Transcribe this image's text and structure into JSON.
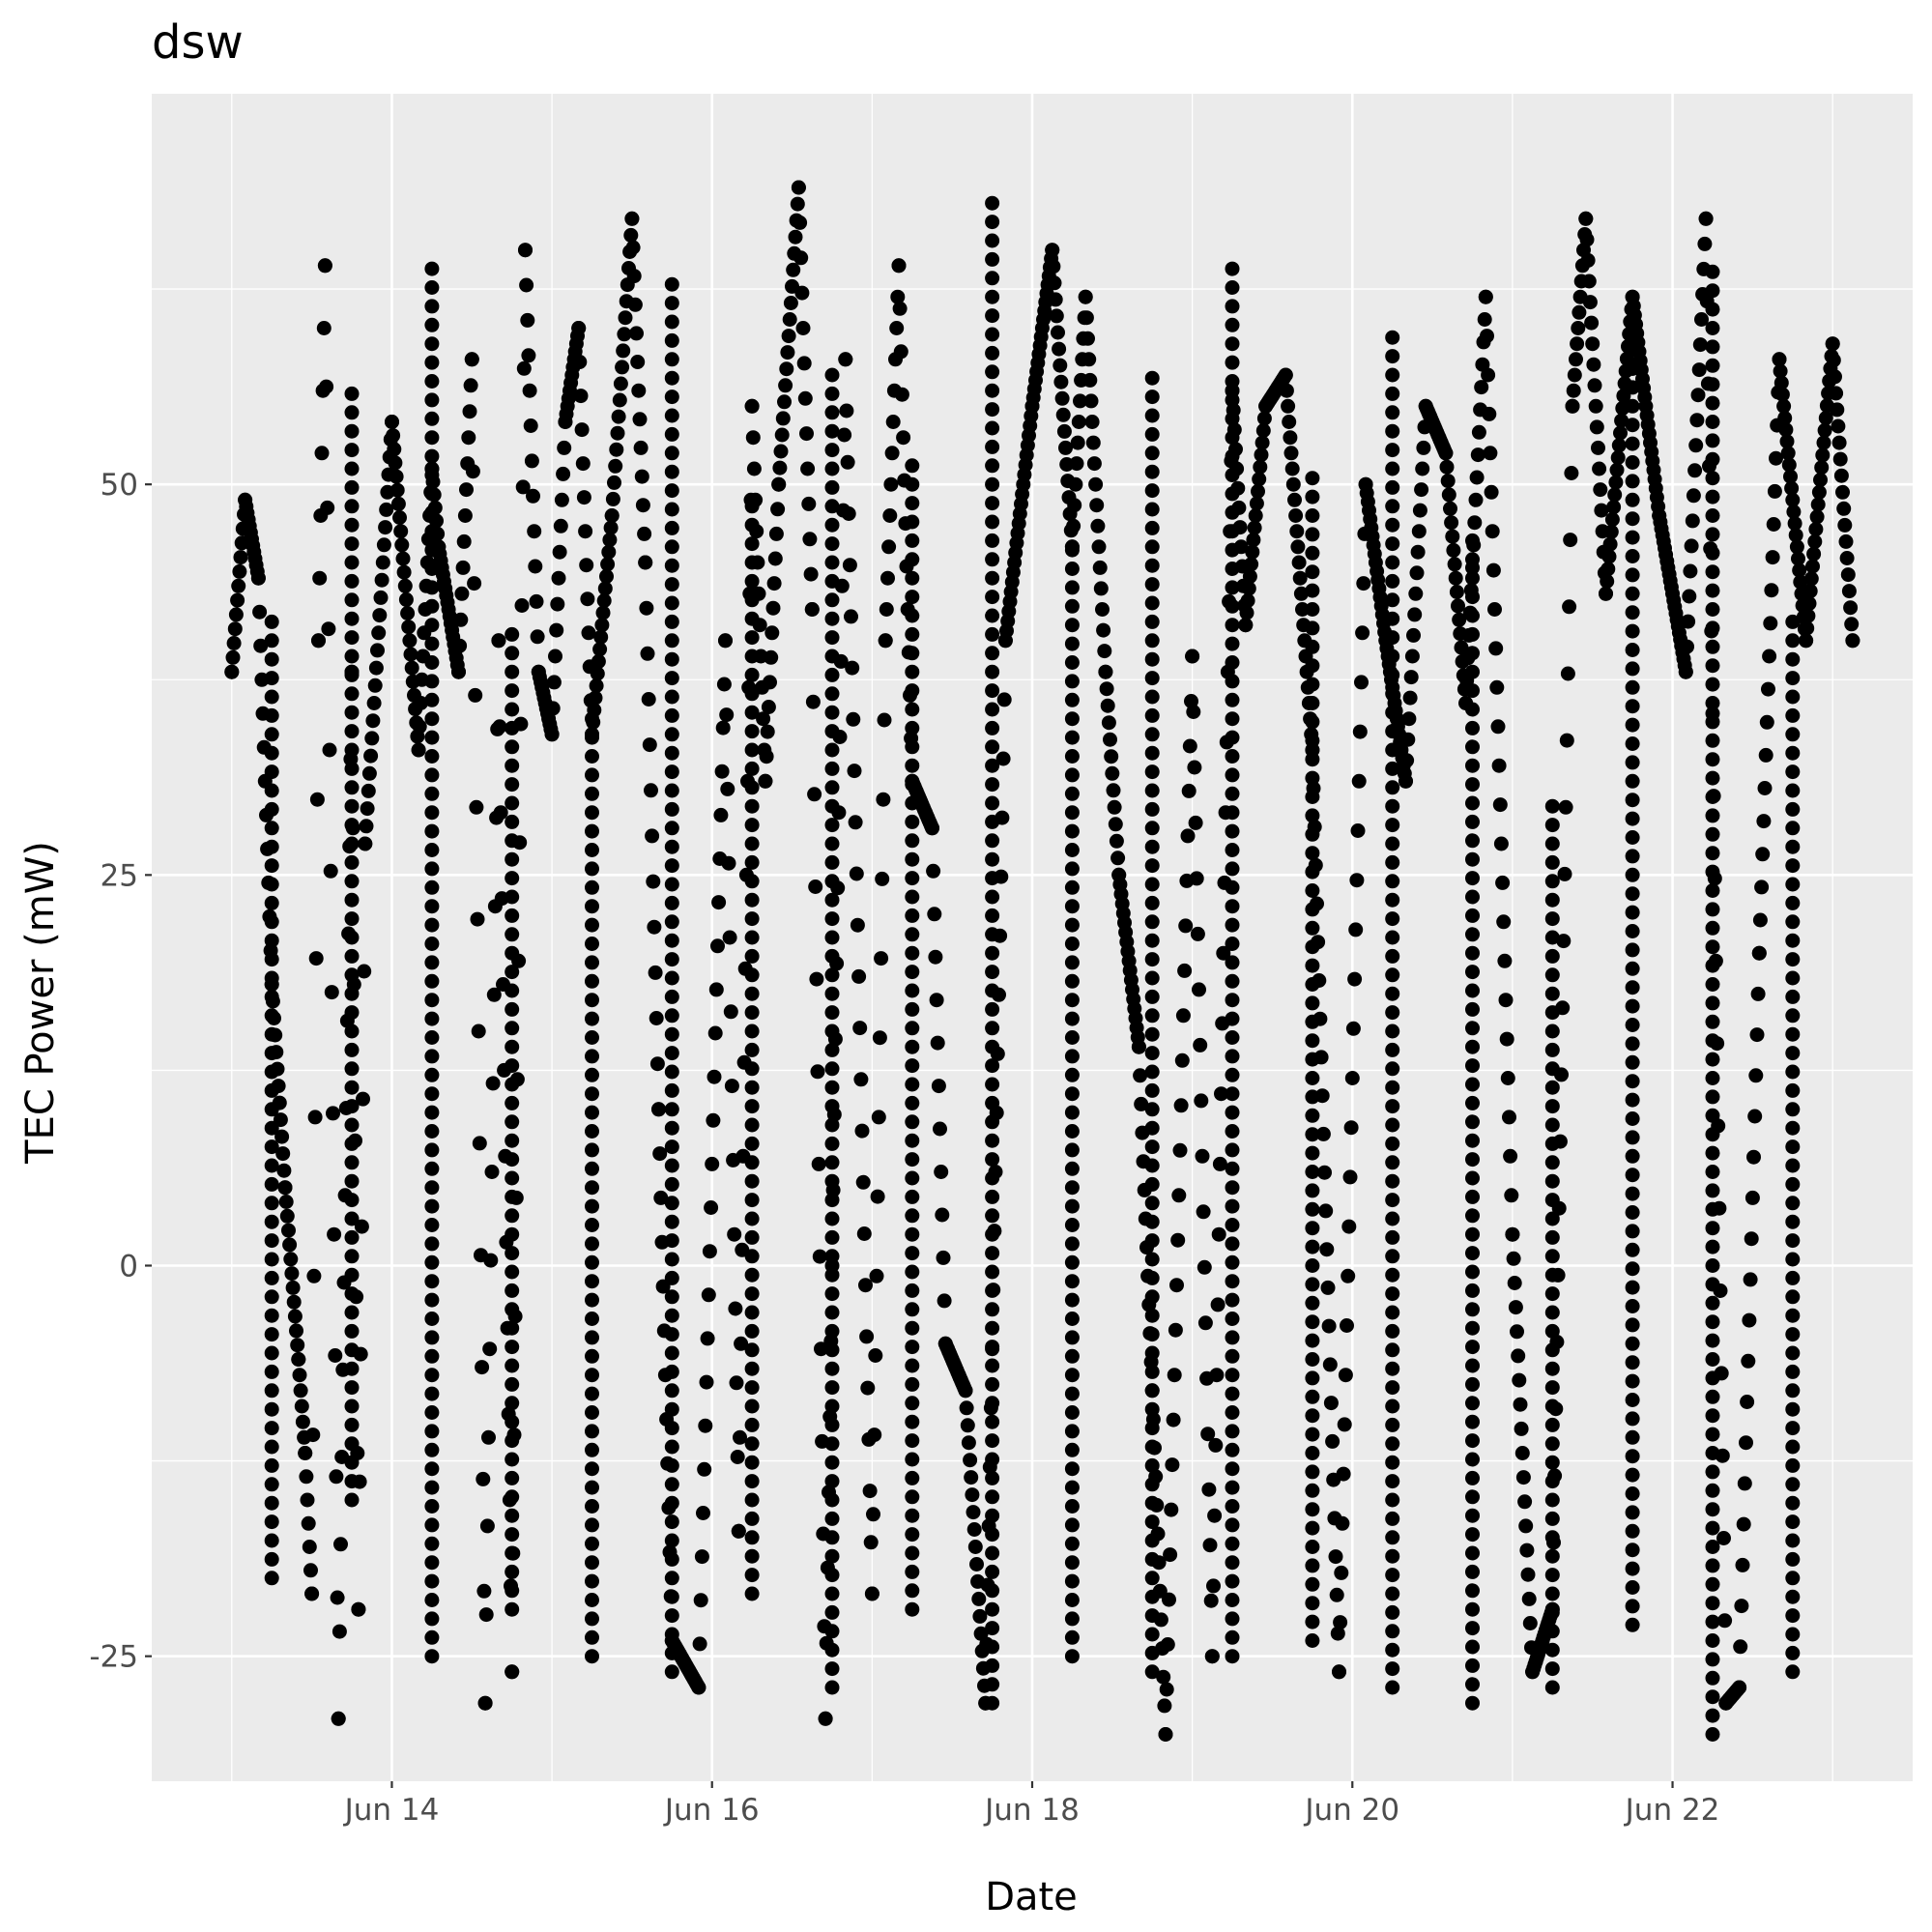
{
  "chart_data": {
    "type": "scatter",
    "title": "dsw",
    "xlabel": "Date",
    "ylabel": "TEC Power (mW)",
    "x_ticks": [
      "Jun 14",
      "Jun 16",
      "Jun 18",
      "Jun 20",
      "Jun 22"
    ],
    "y_ticks": [
      "-25",
      "0",
      "25",
      "50"
    ],
    "xlim": [
      "2023-06-12T12:00",
      "2023-06-23T12:00"
    ],
    "ylim": [
      -33,
      75
    ],
    "grid": true,
    "background": "#ebebeb",
    "point_color": "#000000",
    "series": [
      {
        "x": [
          "2023-06-13T00:00",
          "2023-06-13T02:00",
          "2023-06-13T04:00",
          "2023-06-13T06:00",
          "2023-06-13T08:00",
          "2023-06-13T10:00",
          "2023-06-13T11:00",
          "2023-06-13T12:00",
          "2023-06-13T13:00",
          "2023-06-13T14:00",
          "2023-06-13T16:00",
          "2023-06-13T18:00",
          "2023-06-13T19:00",
          "2023-06-13T20:00",
          "2023-06-14T00:00",
          "2023-06-14T04:00",
          "2023-06-14T06:00",
          "2023-06-14T07:00",
          "2023-06-14T10:00",
          "2023-06-14T12:00",
          "2023-06-14T14:00",
          "2023-06-14T16:00",
          "2023-06-14T18:00",
          "2023-06-14T20:00",
          "2023-06-14T22:00",
          "2023-06-15T00:00",
          "2023-06-15T02:00",
          "2023-06-15T04:00",
          "2023-06-15T06:00",
          "2023-06-15T09:00",
          "2023-06-15T12:00",
          "2023-06-15T14:00",
          "2023-06-15T16:00",
          "2023-06-15T18:00",
          "2023-06-15T22:00",
          "2023-06-16T02:00",
          "2023-06-16T04:00",
          "2023-06-16T06:00",
          "2023-06-16T08:00",
          "2023-06-16T10:00",
          "2023-06-16T13:00",
          "2023-06-16T15:00",
          "2023-06-16T17:00",
          "2023-06-16T20:00",
          "2023-06-17T00:00",
          "2023-06-17T02:00",
          "2023-06-17T04:00",
          "2023-06-17T06:00",
          "2023-06-17T09:00",
          "2023-06-17T11:00",
          "2023-06-17T14:00",
          "2023-06-17T17:00",
          "2023-06-17T20:00",
          "2023-06-18T00:00",
          "2023-06-18T03:00",
          "2023-06-18T06:00",
          "2023-06-18T08:00",
          "2023-06-18T11:00",
          "2023-06-18T13:00",
          "2023-06-18T16:00",
          "2023-06-18T20:00",
          "2023-06-19T00:00",
          "2023-06-19T03:00",
          "2023-06-19T06:00",
          "2023-06-19T08:00",
          "2023-06-19T11:00",
          "2023-06-19T14:00",
          "2023-06-19T18:00",
          "2023-06-19T22:00",
          "2023-06-20T02:00",
          "2023-06-20T05:00",
          "2023-06-20T08:00",
          "2023-06-20T11:00",
          "2023-06-20T14:00",
          "2023-06-20T17:00",
          "2023-06-20T20:00",
          "2023-06-21T00:00",
          "2023-06-21T03:00",
          "2023-06-21T06:00",
          "2023-06-21T09:00",
          "2023-06-21T11:00",
          "2023-06-21T14:00",
          "2023-06-21T18:00",
          "2023-06-21T22:00",
          "2023-06-22T02:00",
          "2023-06-22T05:00",
          "2023-06-22T08:00",
          "2023-06-22T10:00",
          "2023-06-22T13:00",
          "2023-06-22T16:00",
          "2023-06-22T20:00",
          "2023-06-23T00:00",
          "2023-06-23T03:00"
        ],
        "y": [
          38,
          49,
          44,
          18,
          5,
          -6,
          -12,
          -21,
          40,
          64,
          -29,
          38,
          -22,
          27,
          54,
          33,
          51,
          46,
          38,
          58,
          -28,
          40,
          -26,
          65,
          38,
          34,
          54,
          60,
          34,
          48,
          67,
          45,
          10,
          -24,
          -27,
          40,
          -17,
          55,
          31,
          50,
          69,
          42,
          -29,
          58,
          -21,
          40,
          64,
          31,
          28,
          -5,
          -8,
          -28,
          40,
          55,
          65,
          46,
          62,
          38,
          25,
          14,
          -30,
          39,
          -25,
          56,
          41,
          55,
          57,
          33,
          -26,
          50,
          40,
          31,
          55,
          52,
          36,
          62,
          2,
          -26,
          -22,
          55,
          67,
          43,
          62,
          48,
          38,
          67,
          -28,
          -27,
          20,
          58,
          40,
          59,
          40
        ],
        "y_min": [
          -20,
          -15,
          -25,
          -22,
          -25,
          -26,
          -21,
          -27,
          -22,
          -28,
          -25,
          -26,
          -25,
          -24,
          -27,
          -28,
          -27,
          -23,
          -30,
          -26,
          -24,
          -29,
          -28
        ],
        "y_max": [
          42,
          56,
          64,
          41,
          36,
          63,
          49,
          58,
          52,
          69,
          46,
          58,
          64,
          51,
          60,
          47,
          30,
          59,
          64,
          42,
          55,
          47,
          51
        ]
      }
    ]
  }
}
